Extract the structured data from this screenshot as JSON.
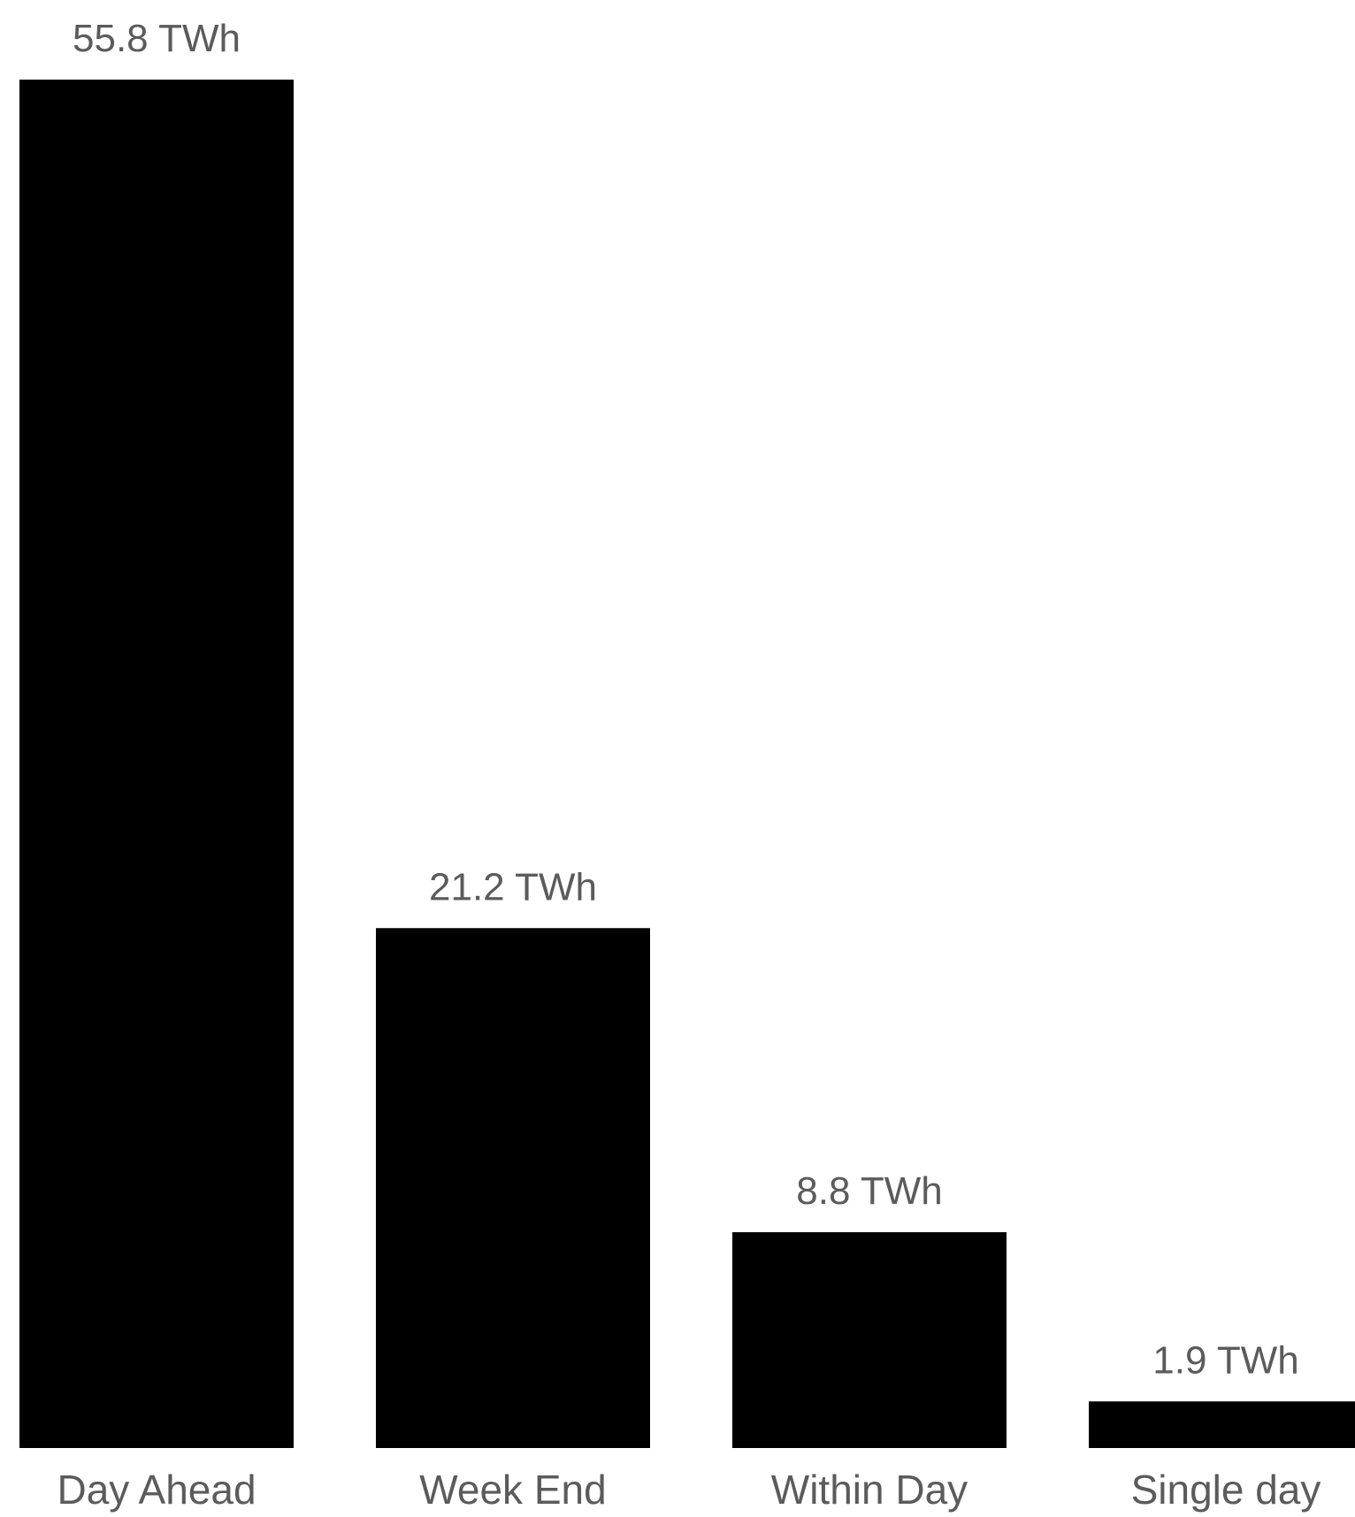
{
  "chart_data": {
    "type": "bar",
    "categories": [
      "Day Ahead",
      "Week End",
      "Within Day",
      "Single day"
    ],
    "values": [
      55.8,
      21.2,
      8.8,
      1.9
    ],
    "data_labels": [
      "55.8 TWh",
      "21.2 TWh",
      "8.8 TWh",
      "1.9 TWh"
    ],
    "unit": "TWh",
    "title": "",
    "xlabel": "",
    "ylabel": "",
    "ylim": [
      0,
      55.8
    ],
    "grid": false,
    "legend": "none",
    "colors": {
      "bar": "#000000",
      "label": "#5b5b5b",
      "background": "#ffffff"
    }
  }
}
